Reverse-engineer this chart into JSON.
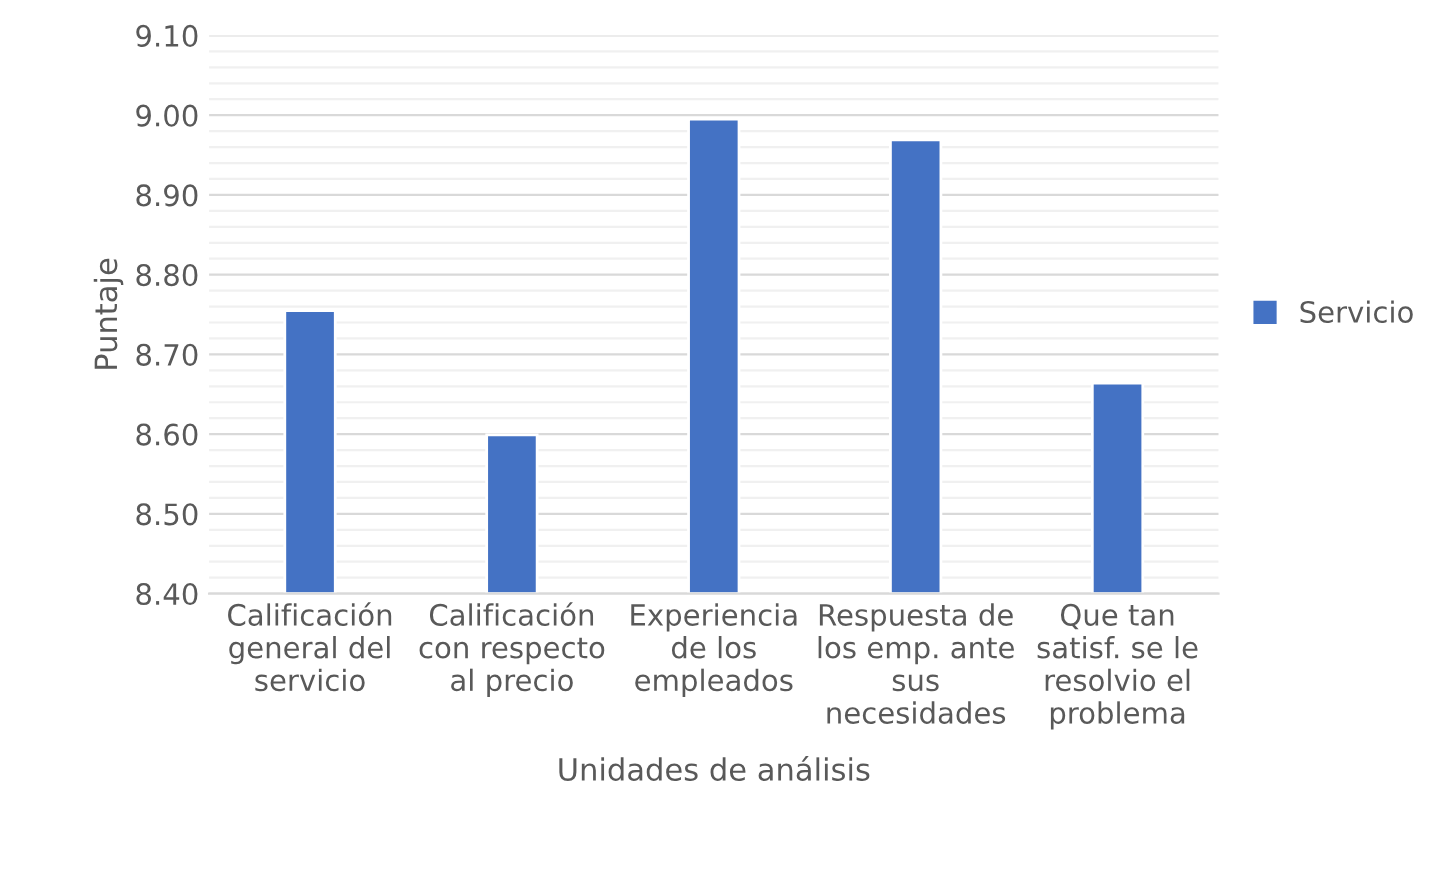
{
  "chart_data": {
    "type": "bar",
    "xlabel": "Unidades de análisis",
    "ylabel": "Puntaje",
    "categories": [
      "Calificación\ngeneral del\nservicio",
      "Calificación\ncon respecto\nal precio",
      "Experiencia\nde los\nempleados",
      "Respuesta de\nlos emp. ante\nsus\nnecesidades",
      "Que tan\nsatisf. se le\nresolvio el\nproblema"
    ],
    "series": [
      {
        "name": "Servicio",
        "color": "#4472c4",
        "values": [
          8.755,
          8.599,
          8.995,
          8.969,
          8.664
        ]
      }
    ],
    "ylim": [
      8.4,
      9.1
    ],
    "yticks": [
      {
        "value": 8.4,
        "label": "8.40"
      },
      {
        "value": 8.5,
        "label": "8.50"
      },
      {
        "value": 8.6,
        "label": "8.60"
      },
      {
        "value": 8.7,
        "label": "8.70"
      },
      {
        "value": 8.8,
        "label": "8.80"
      },
      {
        "value": 8.9,
        "label": "8.90"
      },
      {
        "value": 9.0,
        "label": "9.00"
      },
      {
        "value": 9.1,
        "label": "9.10"
      }
    ],
    "grid": "y",
    "legend": "right"
  }
}
